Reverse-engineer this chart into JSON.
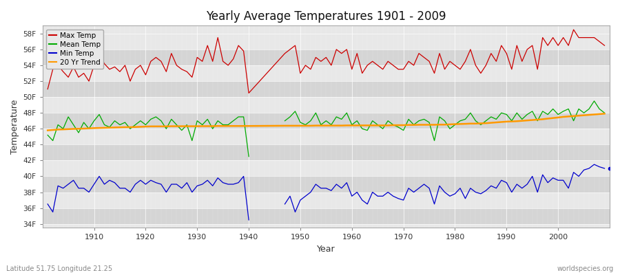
{
  "title": "Yearly Average Temperatures 1901 - 2009",
  "xlabel": "Year",
  "ylabel": "Temperature",
  "subtitle_lat": "Latitude 51.75 Longitude 21.25",
  "watermark": "worldspecies.org",
  "years": [
    1901,
    1902,
    1903,
    1904,
    1905,
    1906,
    1907,
    1908,
    1909,
    1910,
    1911,
    1912,
    1913,
    1914,
    1915,
    1916,
    1917,
    1918,
    1919,
    1920,
    1921,
    1922,
    1923,
    1924,
    1925,
    1926,
    1927,
    1928,
    1929,
    1930,
    1931,
    1932,
    1933,
    1934,
    1935,
    1936,
    1937,
    1938,
    1939,
    1940,
    1947,
    1948,
    1949,
    1950,
    1951,
    1952,
    1953,
    1954,
    1955,
    1956,
    1957,
    1958,
    1959,
    1960,
    1961,
    1962,
    1963,
    1964,
    1965,
    1966,
    1967,
    1968,
    1969,
    1970,
    1971,
    1972,
    1973,
    1974,
    1975,
    1976,
    1977,
    1978,
    1979,
    1980,
    1981,
    1982,
    1983,
    1984,
    1985,
    1986,
    1987,
    1988,
    1989,
    1990,
    1991,
    1992,
    1993,
    1994,
    1995,
    1996,
    1997,
    1998,
    1999,
    2000,
    2001,
    2002,
    2003,
    2004,
    2005,
    2006,
    2007,
    2008,
    2009
  ],
  "max_temp": [
    51.0,
    53.5,
    54.0,
    53.2,
    52.5,
    53.8,
    52.5,
    53.0,
    52.0,
    54.0,
    55.5,
    54.2,
    53.5,
    53.8,
    53.2,
    54.0,
    52.0,
    53.5,
    54.0,
    52.8,
    54.5,
    55.0,
    54.5,
    53.2,
    55.5,
    54.0,
    53.5,
    53.2,
    52.5,
    55.0,
    54.5,
    56.5,
    54.5,
    57.5,
    54.5,
    54.0,
    54.8,
    56.5,
    55.8,
    50.5,
    55.5,
    56.0,
    56.5,
    53.0,
    54.0,
    53.5,
    55.0,
    54.5,
    55.0,
    54.0,
    56.0,
    55.5,
    56.0,
    53.5,
    55.5,
    53.0,
    54.0,
    54.5,
    54.0,
    53.5,
    54.5,
    54.0,
    53.5,
    53.5,
    54.5,
    54.0,
    55.5,
    55.0,
    54.5,
    53.0,
    55.5,
    53.5,
    54.5,
    54.0,
    53.5,
    54.5,
    56.0,
    54.0,
    53.0,
    54.0,
    55.5,
    54.5,
    56.5,
    55.5,
    53.5,
    56.5,
    54.5,
    56.0,
    56.5,
    53.5,
    57.5,
    56.5,
    57.5,
    56.5,
    57.5,
    56.5,
    58.5,
    57.5,
    57.5,
    57.5,
    57.5,
    57.0,
    56.5
  ],
  "mean_temp": [
    45.2,
    44.5,
    46.5,
    46.0,
    47.5,
    46.5,
    45.5,
    46.8,
    46.0,
    47.0,
    47.8,
    46.5,
    46.2,
    47.0,
    46.5,
    46.8,
    46.0,
    46.5,
    47.0,
    46.5,
    47.2,
    47.5,
    47.0,
    46.0,
    47.2,
    46.5,
    45.8,
    46.5,
    44.5,
    47.0,
    46.5,
    47.2,
    46.0,
    47.0,
    46.5,
    46.5,
    47.0,
    47.5,
    47.5,
    42.5,
    47.0,
    47.5,
    48.2,
    46.8,
    46.5,
    47.0,
    48.0,
    46.5,
    47.0,
    46.5,
    47.5,
    47.2,
    48.0,
    46.5,
    47.0,
    46.0,
    45.8,
    47.0,
    46.5,
    46.0,
    47.0,
    46.5,
    46.2,
    45.8,
    47.2,
    46.5,
    47.0,
    47.2,
    46.8,
    44.5,
    47.5,
    47.0,
    46.0,
    46.5,
    47.0,
    47.2,
    48.0,
    47.0,
    46.5,
    47.0,
    47.5,
    47.2,
    48.0,
    47.8,
    47.0,
    48.0,
    47.2,
    47.8,
    48.2,
    47.0,
    48.2,
    47.8,
    48.5,
    47.8,
    48.2,
    48.5,
    47.0,
    48.5,
    48.0,
    48.5,
    49.5,
    48.5,
    48.0
  ],
  "min_temp": [
    36.5,
    35.5,
    38.8,
    38.5,
    39.0,
    39.5,
    38.5,
    38.5,
    38.0,
    39.0,
    40.0,
    39.0,
    39.5,
    39.2,
    38.5,
    38.5,
    38.0,
    39.0,
    39.5,
    39.0,
    39.5,
    39.2,
    39.0,
    38.0,
    39.0,
    39.0,
    38.5,
    39.2,
    38.0,
    38.8,
    39.0,
    39.5,
    38.8,
    39.8,
    39.2,
    39.0,
    39.0,
    39.2,
    40.0,
    34.5,
    36.5,
    37.5,
    35.5,
    37.0,
    37.5,
    38.0,
    39.0,
    38.5,
    38.5,
    38.2,
    39.0,
    38.5,
    39.2,
    37.5,
    38.0,
    37.0,
    36.5,
    38.0,
    37.5,
    37.5,
    38.0,
    37.5,
    37.2,
    37.0,
    38.5,
    38.0,
    38.5,
    39.0,
    38.5,
    36.5,
    38.8,
    38.0,
    37.5,
    37.8,
    38.5,
    37.2,
    38.5,
    38.0,
    37.8,
    38.2,
    38.8,
    38.5,
    39.5,
    39.2,
    38.0,
    39.0,
    38.5,
    39.0,
    40.0,
    38.0,
    40.2,
    39.2,
    39.8,
    39.5,
    39.5,
    38.5,
    40.5,
    40.0,
    40.8,
    41.0,
    41.5,
    41.2,
    41.0
  ],
  "trend": [
    45.8,
    45.85,
    45.9,
    45.92,
    45.95,
    45.98,
    46.0,
    46.02,
    46.05,
    46.08,
    46.1,
    46.12,
    46.14,
    46.16,
    46.18,
    46.2,
    46.2,
    46.22,
    46.25,
    46.28,
    46.3,
    46.3,
    46.3,
    46.3,
    46.32,
    46.32,
    46.32,
    46.32,
    46.32,
    46.32,
    46.33,
    46.33,
    46.33,
    46.35,
    46.35,
    46.35,
    46.35,
    46.35,
    46.35,
    46.35,
    46.38,
    46.38,
    46.38,
    46.38,
    46.38,
    46.38,
    46.4,
    46.4,
    46.4,
    46.4,
    46.4,
    46.4,
    46.42,
    46.42,
    46.42,
    46.42,
    46.42,
    46.42,
    46.42,
    46.42,
    46.42,
    46.45,
    46.45,
    46.45,
    46.48,
    46.48,
    46.5,
    46.5,
    46.5,
    46.5,
    46.52,
    46.52,
    46.55,
    46.58,
    46.6,
    46.62,
    46.65,
    46.65,
    46.68,
    46.7,
    46.75,
    46.8,
    46.85,
    46.9,
    46.92,
    46.95,
    47.0,
    47.05,
    47.1,
    47.15,
    47.2,
    47.28,
    47.35,
    47.42,
    47.5,
    47.55,
    47.6,
    47.65,
    47.7,
    47.75,
    47.8,
    47.85,
    47.9
  ],
  "max_color": "#cc0000",
  "mean_color": "#00aa00",
  "min_color": "#0000cc",
  "trend_color": "#ff9900",
  "bg_color": "#ffffff",
  "plot_bg_light": "#e8e8e8",
  "plot_bg_dark": "#d5d5d5",
  "ylim": [
    33.5,
    59.0
  ],
  "yticks": [
    34,
    36,
    38,
    40,
    42,
    44,
    46,
    48,
    50,
    52,
    54,
    56,
    58
  ],
  "xlim": [
    1900,
    2010
  ],
  "xticks": [
    1910,
    1920,
    1930,
    1940,
    1950,
    1960,
    1970,
    1980,
    1990,
    2000
  ]
}
